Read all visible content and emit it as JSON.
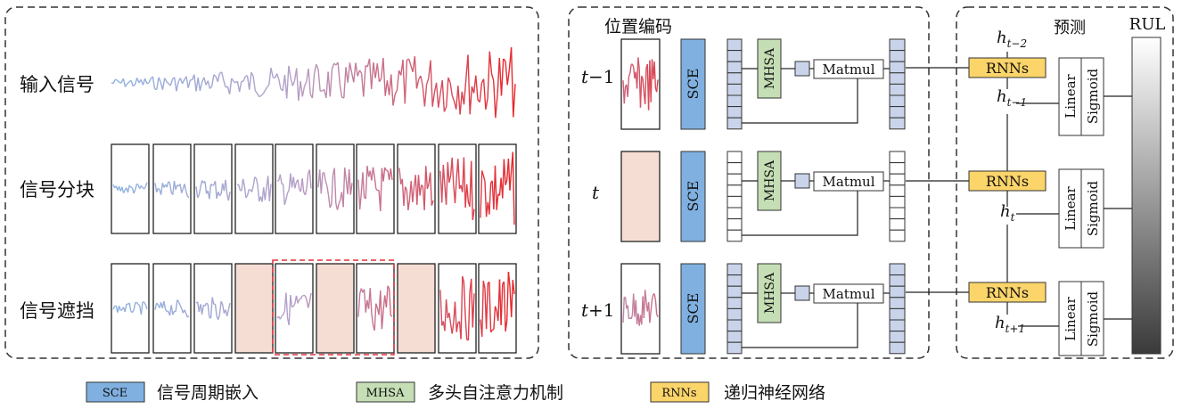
{
  "left_panel": {
    "rows": [
      "输入信号",
      "信号分块",
      "信号遮挡"
    ],
    "signal_colors": {
      "start": "#8fb3e0",
      "mid": "#b4a0c8",
      "end": "#e8262a"
    },
    "mask_color": "#f6ddd4",
    "masked_blocks": [
      3,
      5,
      7
    ],
    "dashed_group_color": "#e0303a"
  },
  "middle_panel": {
    "title": "位置编码",
    "rows": [
      {
        "t_prefix": "t",
        "t_suffix": "−1",
        "has_signal": true
      },
      {
        "t_prefix": "t",
        "t_suffix": "",
        "has_signal": false
      },
      {
        "t_prefix": "t",
        "t_suffix": "+1",
        "has_signal": true
      }
    ],
    "sce_label": "SCE",
    "mhsa_label": "MHSA",
    "matmul_label": "Matmul",
    "colors": {
      "sce": "#7fb0e0",
      "mhsa": "#c5deb5",
      "small_box": "#c9d4ea",
      "cell": "#c9d4ea"
    }
  },
  "right_panel": {
    "title": "预测",
    "rnn_label": "RNNs",
    "linear_label": "Linear",
    "sigmoid_label": "Sigmoid",
    "rul_label": "RUL",
    "h_labels": [
      {
        "base": "h",
        "sub": "t−2"
      },
      {
        "base": "h",
        "sub": "t−1"
      },
      {
        "base": "h",
        "sub": "t"
      },
      {
        "base": "h",
        "sub": "t+1"
      }
    ],
    "colors": {
      "rnn": "#fbd46a"
    }
  },
  "legend": [
    {
      "tag": "SCE",
      "text": "信号周期嵌入",
      "color": "#7fb0e0"
    },
    {
      "tag": "MHSA",
      "text": "多头自注意力机制",
      "color": "#c5deb5"
    },
    {
      "tag": "RNNs",
      "text": "递归神经网络",
      "color": "#fbd46a"
    }
  ]
}
